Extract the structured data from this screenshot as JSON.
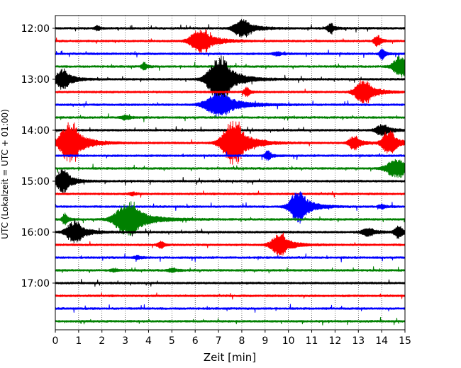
{
  "chart_data": {
    "type": "line",
    "title": "",
    "xlabel": "Zeit  [min]",
    "ylabel": "UTC (Lokalzeit = UTC + 01:00)",
    "xlim": [
      0,
      15
    ],
    "x_ticks": [
      "0",
      "1",
      "2",
      "3",
      "4",
      "5",
      "6",
      "7",
      "8",
      "9",
      "10",
      "11",
      "12",
      "13",
      "14",
      "15"
    ],
    "grid": "vertical dotted",
    "y_ticks": [
      {
        "label": "12:00",
        "trace": 0
      },
      {
        "label": "13:00",
        "trace": 4
      },
      {
        "label": "14:00",
        "trace": 8
      },
      {
        "label": "15:00",
        "trace": 12
      },
      {
        "label": "16:00",
        "trace": 16
      },
      {
        "label": "17:00",
        "trace": 20
      }
    ],
    "colors": [
      "#000000",
      "#ff0000",
      "#0000ff",
      "#008000"
    ],
    "trace_count": 24,
    "trace_interval_min": 15,
    "events": [
      {
        "trace": 0,
        "t": 8.0,
        "amp": 12,
        "dur": 1.0
      },
      {
        "trace": 0,
        "t": 1.8,
        "amp": 3,
        "dur": 0.3
      },
      {
        "trace": 0,
        "t": 11.8,
        "amp": 6,
        "dur": 0.4
      },
      {
        "trace": 1,
        "t": 6.2,
        "amp": 16,
        "dur": 1.2
      },
      {
        "trace": 1,
        "t": 13.8,
        "amp": 7,
        "dur": 0.4
      },
      {
        "trace": 2,
        "t": 14.0,
        "amp": 8,
        "dur": 0.3
      },
      {
        "trace": 2,
        "t": 9.5,
        "amp": 2.5,
        "dur": 0.5
      },
      {
        "trace": 3,
        "t": 14.8,
        "amp": 14,
        "dur": 0.9
      },
      {
        "trace": 3,
        "t": 3.8,
        "amp": 5,
        "dur": 0.3
      },
      {
        "trace": 4,
        "t": 7.0,
        "amp": 32,
        "dur": 1.3
      },
      {
        "trace": 4,
        "t": 0.3,
        "amp": 14,
        "dur": 0.8
      },
      {
        "trace": 5,
        "t": 13.2,
        "amp": 16,
        "dur": 1.0
      },
      {
        "trace": 5,
        "t": 8.2,
        "amp": 7,
        "dur": 0.3
      },
      {
        "trace": 6,
        "t": 7.0,
        "amp": 16,
        "dur": 1.6
      },
      {
        "trace": 7,
        "t": 3.0,
        "amp": 3,
        "dur": 0.5
      },
      {
        "trace": 8,
        "t": 14.0,
        "amp": 7,
        "dur": 0.8
      },
      {
        "trace": 9,
        "t": 0.6,
        "amp": 28,
        "dur": 1.2
      },
      {
        "trace": 9,
        "t": 7.6,
        "amp": 30,
        "dur": 1.3
      },
      {
        "trace": 9,
        "t": 12.8,
        "amp": 10,
        "dur": 0.6
      },
      {
        "trace": 9,
        "t": 14.3,
        "amp": 16,
        "dur": 0.8
      },
      {
        "trace": 10,
        "t": 9.1,
        "amp": 6,
        "dur": 0.4
      },
      {
        "trace": 11,
        "t": 14.6,
        "amp": 12,
        "dur": 1.2
      },
      {
        "trace": 12,
        "t": 0.3,
        "amp": 16,
        "dur": 0.8
      },
      {
        "trace": 13,
        "t": 3.3,
        "amp": 2,
        "dur": 0.4
      },
      {
        "trace": 14,
        "t": 10.4,
        "amp": 22,
        "dur": 1.0
      },
      {
        "trace": 14,
        "t": 14.0,
        "amp": 3,
        "dur": 0.4
      },
      {
        "trace": 15,
        "t": 3.1,
        "amp": 24,
        "dur": 1.5
      },
      {
        "trace": 15,
        "t": 0.4,
        "amp": 8,
        "dur": 0.3
      },
      {
        "trace": 16,
        "t": 0.8,
        "amp": 14,
        "dur": 1.0
      },
      {
        "trace": 16,
        "t": 13.4,
        "amp": 5,
        "dur": 0.8
      },
      {
        "trace": 16,
        "t": 14.7,
        "amp": 8,
        "dur": 0.5
      },
      {
        "trace": 17,
        "t": 9.6,
        "amp": 14,
        "dur": 1.0
      },
      {
        "trace": 17,
        "t": 4.5,
        "amp": 4,
        "dur": 0.4
      },
      {
        "trace": 18,
        "t": 3.5,
        "amp": 2,
        "dur": 0.4
      },
      {
        "trace": 19,
        "t": 5.0,
        "amp": 2.5,
        "dur": 0.5
      },
      {
        "trace": 19,
        "t": 2.5,
        "amp": 2,
        "dur": 0.4
      }
    ]
  }
}
